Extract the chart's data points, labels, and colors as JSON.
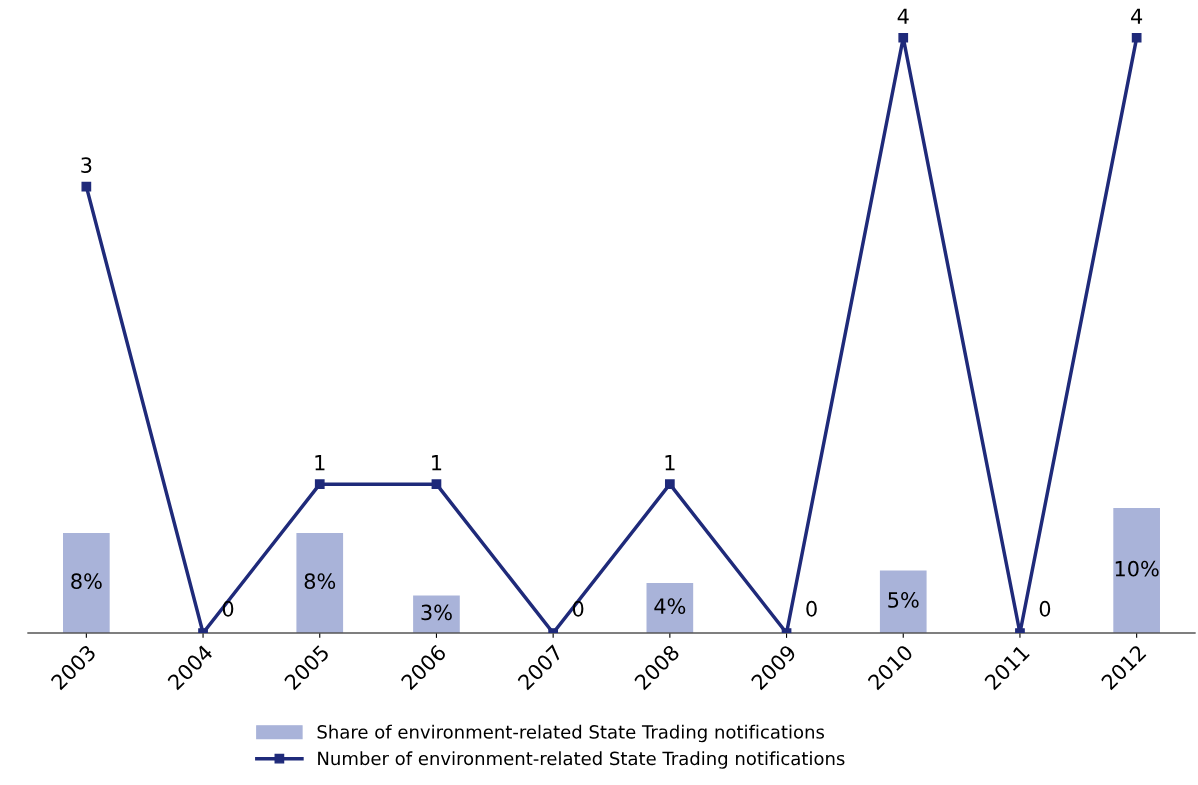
{
  "chart_data": {
    "type": "bar",
    "categories": [
      "2003",
      "2004",
      "2005",
      "2006",
      "2007",
      "2008",
      "2009",
      "2010",
      "2011",
      "2012"
    ],
    "series": [
      {
        "name": "Share of environment-related State Trading notifications",
        "axis": "y2",
        "color": "#a9b3d9",
        "values": [
          8,
          0,
          8,
          3,
          0,
          4,
          0,
          5,
          0,
          10
        ],
        "value_labels": [
          "8%",
          null,
          "8%",
          "3%",
          null,
          "4%",
          null,
          "5%",
          null,
          "10%"
        ]
      },
      {
        "name": "Number of environment-related State Trading notifications",
        "type": "line",
        "color": "#1f2a7a",
        "marker": "square",
        "values": [
          3,
          0,
          1,
          1,
          0,
          1,
          0,
          4,
          0,
          4
        ],
        "data_labels": true
      }
    ],
    "tick_labels": "x",
    "grid": false,
    "legend": "bottom"
  }
}
